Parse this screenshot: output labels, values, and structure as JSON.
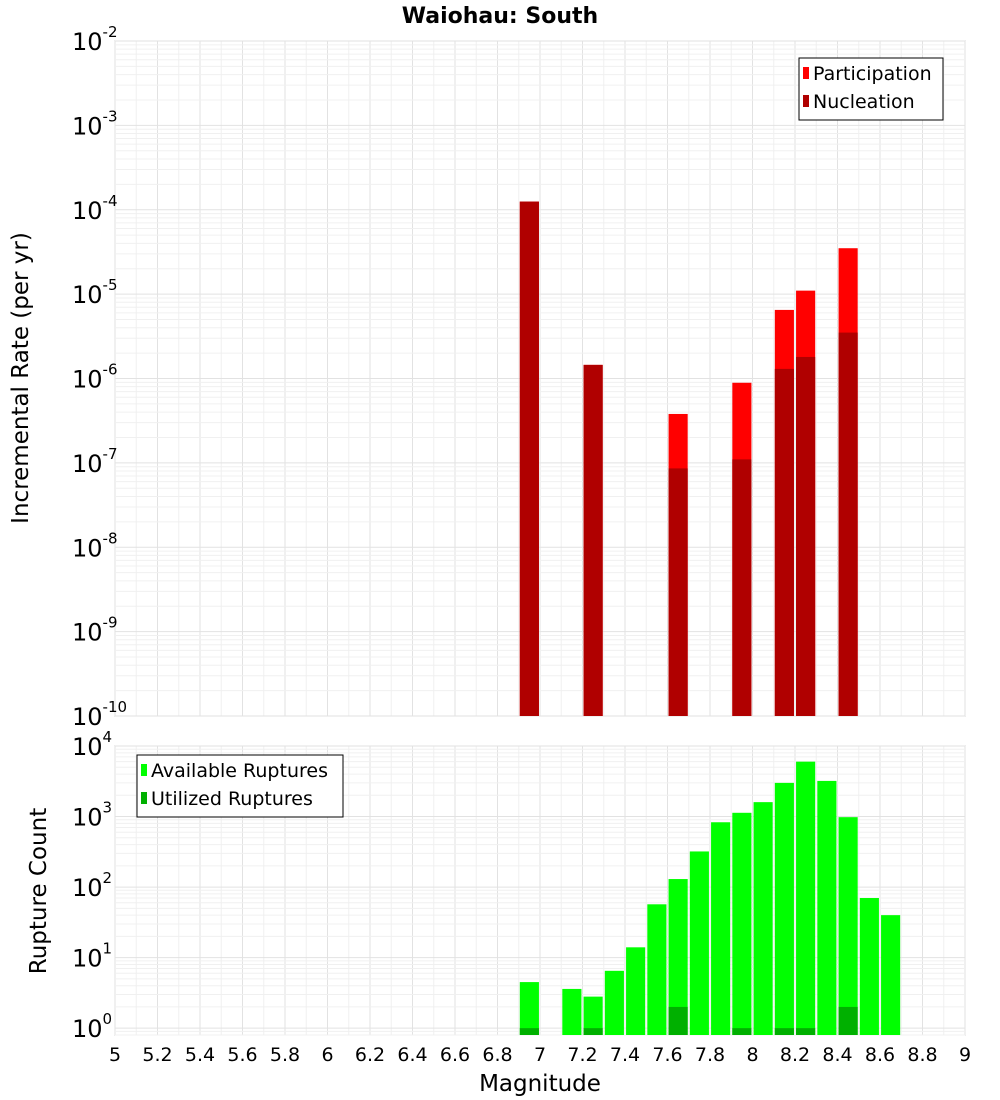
{
  "figure": {
    "title": "Waiohau: South",
    "xlabel": "Magnitude"
  },
  "chart_data": [
    {
      "type": "bar",
      "name": "rate",
      "ylabel": "Incremental Rate (per yr)",
      "yscale": "log",
      "ylim_exp": [
        -10,
        -2
      ],
      "xlim": [
        5,
        9
      ],
      "bar_width": 0.09,
      "legend": {
        "placement": "top-right",
        "items": [
          {
            "label": "Participation",
            "color": "#ff0000"
          },
          {
            "label": "Nucleation",
            "color": "#b00000"
          }
        ]
      },
      "series": [
        {
          "name": "Participation",
          "color": "#ff0000",
          "x": [
            6.95,
            7.25,
            7.65,
            7.95,
            8.15,
            8.25,
            8.45
          ],
          "values": [
            0.000125,
            1.45e-06,
            3.8e-07,
            8.9e-07,
            6.5e-06,
            1.1e-05,
            3.5e-05
          ]
        },
        {
          "name": "Nucleation",
          "color": "#b00000",
          "x": [
            6.95,
            7.25,
            7.65,
            7.95,
            8.15,
            8.25,
            8.45
          ],
          "values": [
            0.000125,
            1.45e-06,
            8.6e-08,
            1.1e-07,
            1.3e-06,
            1.8e-06,
            3.5e-06
          ]
        }
      ]
    },
    {
      "type": "bar",
      "name": "count",
      "ylabel": "Rupture Count",
      "yscale": "log",
      "ylim_exp": [
        0,
        4
      ],
      "ymin_value": 0.8,
      "xlim": [
        5,
        9
      ],
      "bar_width": 0.09,
      "legend": {
        "placement": "top-left",
        "items": [
          {
            "label": "Available Ruptures",
            "color": "#00ff00"
          },
          {
            "label": "Utilized Ruptures",
            "color": "#00b000"
          }
        ]
      },
      "series": [
        {
          "name": "Available Ruptures",
          "color": "#00ff00",
          "x": [
            6.95,
            7.15,
            7.25,
            7.35,
            7.45,
            7.55,
            7.65,
            7.75,
            7.85,
            7.95,
            8.05,
            8.15,
            8.25,
            8.35,
            8.45,
            8.55,
            8.65
          ],
          "values": [
            4.5,
            3.6,
            2.8,
            6.5,
            14,
            57,
            130,
            320,
            830,
            1130,
            1600,
            3000,
            6000,
            3200,
            980,
            70,
            40
          ]
        },
        {
          "name": "Utilized Ruptures",
          "color": "#00b000",
          "x": [
            6.95,
            7.25,
            7.65,
            7.95,
            8.15,
            8.25,
            8.45
          ],
          "values": [
            1,
            1,
            2,
            1,
            1,
            1,
            2
          ]
        }
      ]
    }
  ],
  "xticks": [
    "5",
    "5.2",
    "5.4",
    "5.6",
    "5.8",
    "6",
    "6.2",
    "6.4",
    "6.6",
    "6.8",
    "7",
    "7.2",
    "7.4",
    "7.6",
    "7.8",
    "8",
    "8.2",
    "8.4",
    "8.6",
    "8.8",
    "9"
  ]
}
